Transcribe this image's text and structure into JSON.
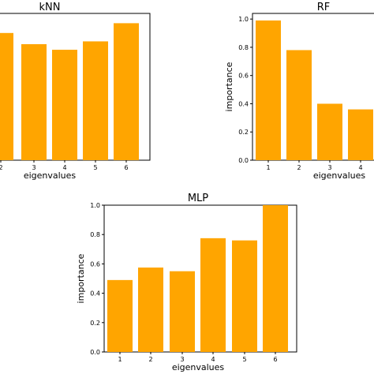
{
  "chart_data": [
    {
      "type": "bar",
      "title": "kNN",
      "xlabel": "eigenvalues",
      "ylabel": "",
      "categories": [
        "2",
        "3",
        "4",
        "5",
        "6"
      ],
      "values": [
        0.91,
        0.83,
        0.79,
        0.85,
        0.98
      ],
      "ylim": [
        0,
        1.05
      ],
      "bar_color": "#FFA500",
      "grid": false
    },
    {
      "type": "bar",
      "title": "RF",
      "xlabel": "eigenvalues",
      "ylabel": "importance",
      "categories": [
        "1",
        "2",
        "3",
        "4"
      ],
      "values": [
        0.99,
        0.78,
        0.4,
        0.36
      ],
      "yticks": [
        "0.0",
        "0.2",
        "0.4",
        "0.6",
        "0.8",
        "1.0"
      ],
      "ylim": [
        0,
        1.04
      ],
      "bar_color": "#FFA500",
      "grid": false
    },
    {
      "type": "bar",
      "title": "MLP",
      "xlabel": "eigenvalues",
      "ylabel": "importance",
      "categories": [
        "1",
        "2",
        "3",
        "4",
        "5",
        "6"
      ],
      "values": [
        0.49,
        0.575,
        0.55,
        0.775,
        0.76,
        1.0
      ],
      "yticks": [
        "0.0",
        "0.2",
        "0.4",
        "0.6",
        "0.8",
        "1.0"
      ],
      "ylim": [
        0,
        1.0
      ],
      "bar_color": "#FFA500",
      "grid": false
    }
  ]
}
